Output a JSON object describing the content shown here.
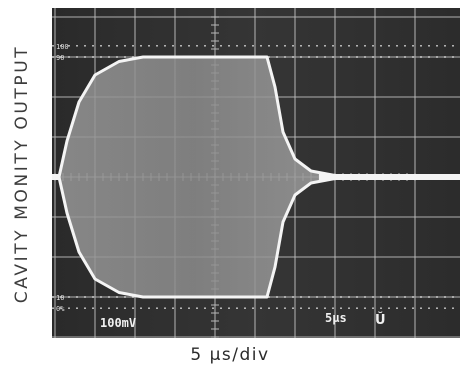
{
  "chart_data": {
    "type": "line",
    "title": "",
    "ylabel": "CAVITY MONITY OUTPUT",
    "xlabel": "5 µs/div",
    "x_divisions": 10,
    "y_divisions": 8,
    "y_markers": [
      "100",
      "90",
      "10",
      "0%"
    ],
    "scope_readouts": {
      "vertical_scale": "100mV",
      "time_scale": "5µs",
      "trigger_mark": "Ŭ"
    },
    "envelope": {
      "x_unit": "µs",
      "baseline_level": 0.5,
      "upper_level": 0.9,
      "lower_level": 0.1,
      "points": [
        {
          "t": 0.0,
          "upper": 0.5,
          "lower": 0.5
        },
        {
          "t": 5.5,
          "upper": 0.5,
          "lower": 0.5
        },
        {
          "t": 6.5,
          "upper": 0.62,
          "lower": 0.38
        },
        {
          "t": 8.0,
          "upper": 0.75,
          "lower": 0.25
        },
        {
          "t": 10.0,
          "upper": 0.84,
          "lower": 0.16
        },
        {
          "t": 13.0,
          "upper": 0.885,
          "lower": 0.115
        },
        {
          "t": 16.0,
          "upper": 0.9,
          "lower": 0.1
        },
        {
          "t": 31.5,
          "upper": 0.9,
          "lower": 0.1
        },
        {
          "t": 32.5,
          "upper": 0.8,
          "lower": 0.2
        },
        {
          "t": 33.5,
          "upper": 0.65,
          "lower": 0.35
        },
        {
          "t": 35.0,
          "upper": 0.56,
          "lower": 0.44
        },
        {
          "t": 37.0,
          "upper": 0.52,
          "lower": 0.48
        },
        {
          "t": 40.0,
          "upper": 0.505,
          "lower": 0.495
        },
        {
          "t": 50.0,
          "upper": 0.5,
          "lower": 0.5
        }
      ]
    },
    "grid": true
  },
  "colors": {
    "screen": "#303030",
    "grid": "#b9b9b9",
    "trace": "#f4f4f4",
    "fill": "#8a8a8a",
    "text": "#2a2a2a"
  }
}
